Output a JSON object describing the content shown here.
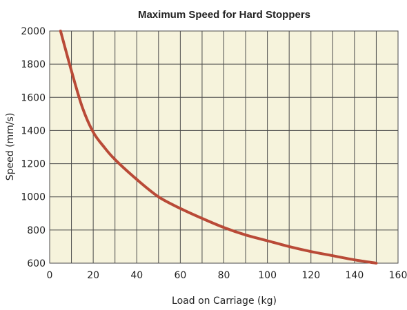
{
  "chart_data": {
    "type": "line",
    "title": "Maximum Speed for Hard Stoppers",
    "xlabel": "Load on Carriage (kg)",
    "ylabel": "Speed (mm/s)",
    "xlim": [
      0,
      160
    ],
    "ylim": [
      600,
      2000
    ],
    "xticks": [
      0,
      20,
      40,
      60,
      80,
      100,
      120,
      140,
      160
    ],
    "yticks": [
      600,
      800,
      1000,
      1200,
      1400,
      1600,
      1800,
      2000
    ],
    "grid": true,
    "legend": "none",
    "colors": {
      "plot_background": "#f6f3dc",
      "grid": "#4a4a4a",
      "series": "#b94a37"
    },
    "series": [
      {
        "x": [
          5,
          10,
          15,
          20,
          25,
          30,
          40,
          50,
          60,
          70,
          80,
          90,
          100,
          110,
          120,
          130,
          140,
          150
        ],
        "y": [
          2000,
          1760,
          1540,
          1390,
          1300,
          1225,
          1105,
          1000,
          930,
          870,
          815,
          770,
          735,
          700,
          670,
          645,
          620,
          600
        ]
      }
    ]
  }
}
